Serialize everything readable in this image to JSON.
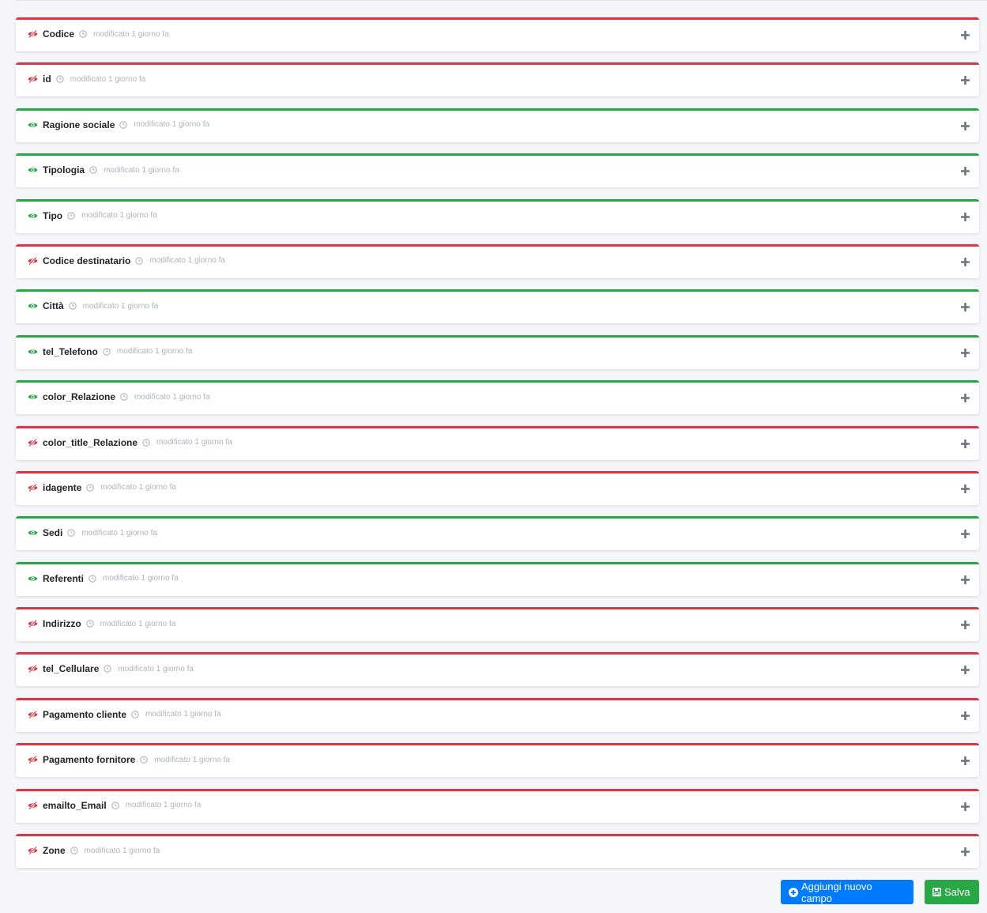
{
  "colors": {
    "visible": "#28a745",
    "hidden": "#dc3545",
    "primary": "#007bff",
    "success": "#28a745"
  },
  "fields": [
    {
      "name": "Codice",
      "visible": false,
      "modified": "modificato 1 giorno fa"
    },
    {
      "name": "id",
      "visible": false,
      "modified": "modificato 1 giorno fa"
    },
    {
      "name": "Ragione sociale",
      "visible": true,
      "modified": "modificato 1 giorno fa"
    },
    {
      "name": "Tipologia",
      "visible": true,
      "modified": "modificato 1 giorno fa"
    },
    {
      "name": "Tipo",
      "visible": true,
      "modified": "modificato 1 giorno fa"
    },
    {
      "name": "Codice destinatario",
      "visible": false,
      "modified": "modificato 1 giorno fa"
    },
    {
      "name": "Città",
      "visible": true,
      "modified": "modificato 1 giorno fa"
    },
    {
      "name": "tel_Telefono",
      "visible": true,
      "modified": "modificato 1 giorno fa"
    },
    {
      "name": "color_Relazione",
      "visible": true,
      "modified": "modificato 1 giorno fa"
    },
    {
      "name": "color_title_Relazione",
      "visible": false,
      "modified": "modificato 1 giorno fa"
    },
    {
      "name": "idagente",
      "visible": false,
      "modified": "modificato 1 giorno fa"
    },
    {
      "name": "Sedi",
      "visible": true,
      "modified": "modificato 1 giorno fa"
    },
    {
      "name": "Referenti",
      "visible": true,
      "modified": "modificato 1 giorno fa"
    },
    {
      "name": "Indirizzo",
      "visible": false,
      "modified": "modificato 1 giorno fa"
    },
    {
      "name": "tel_Cellulare",
      "visible": false,
      "modified": "modificato 1 giorno fa"
    },
    {
      "name": "Pagamento cliente",
      "visible": false,
      "modified": "modificato 1 giorno fa"
    },
    {
      "name": "Pagamento fornitore",
      "visible": false,
      "modified": "modificato 1 giorno fa"
    },
    {
      "name": "emailto_Email",
      "visible": false,
      "modified": "modificato 1 giorno fa"
    },
    {
      "name": "Zone",
      "visible": false,
      "modified": "modificato 1 giorno fa"
    }
  ],
  "actions": {
    "add_label": "Aggiungi nuovo campo",
    "save_label": "Salva"
  }
}
